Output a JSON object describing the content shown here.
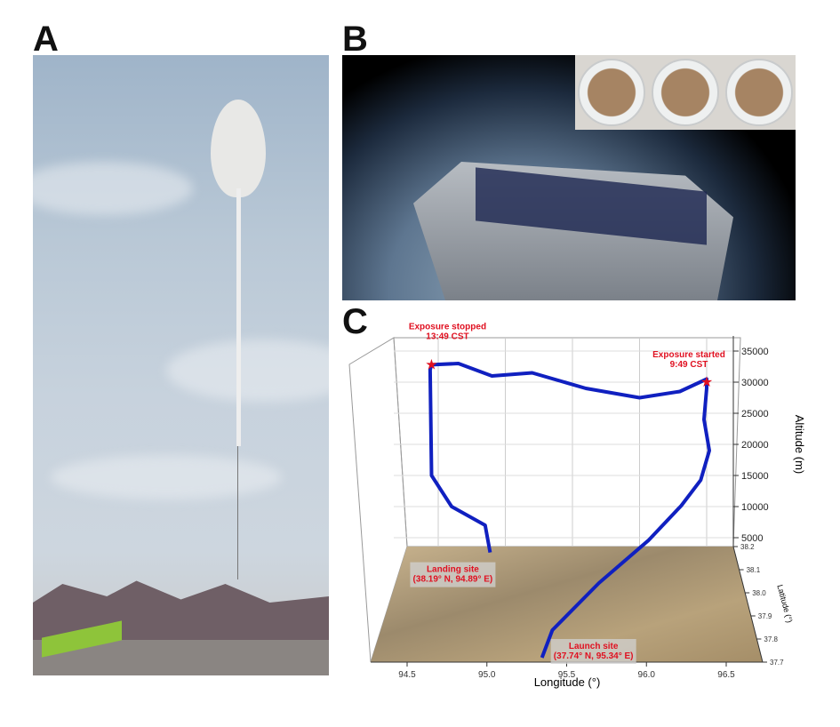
{
  "panels": {
    "a": "A",
    "b": "B",
    "c": "C"
  },
  "chart_data": {
    "type": "line-3d",
    "xlabel": "Longitude (°)",
    "ylabel": "Latitude (°)",
    "zlabel": "Altitude (m)",
    "x_ticks": [
      "94.5",
      "95.0",
      "95.5",
      "96.0",
      "96.5"
    ],
    "y_ticks": [
      "37.7",
      "37.8",
      "37.9",
      "38.0",
      "38.1",
      "38.2"
    ],
    "z_ticks": [
      "5000",
      "10000",
      "15000",
      "20000",
      "25000",
      "30000",
      "35000"
    ],
    "xlim": [
      94.3,
      96.7
    ],
    "ylim": [
      37.7,
      38.2
    ],
    "zlim": [
      0,
      36000
    ],
    "line_color": "#1020c0",
    "marker_color": "#e01020",
    "trajectory": [
      [
        37.74,
        95.34,
        2800
      ],
      [
        37.8,
        95.4,
        5000
      ],
      [
        37.95,
        95.7,
        7000
      ],
      [
        38.08,
        96.05,
        9000
      ],
      [
        38.15,
        96.3,
        12000
      ],
      [
        38.18,
        96.45,
        15000
      ],
      [
        38.2,
        96.52,
        19000
      ],
      [
        38.2,
        96.48,
        24000
      ],
      [
        38.2,
        96.5,
        29000
      ],
      [
        38.2,
        96.5,
        30500
      ],
      [
        38.2,
        96.3,
        28500
      ],
      [
        38.2,
        96.0,
        27500
      ],
      [
        38.2,
        95.6,
        29000
      ],
      [
        38.2,
        95.2,
        31500
      ],
      [
        38.2,
        94.9,
        31000
      ],
      [
        38.2,
        94.65,
        33000
      ],
      [
        38.2,
        94.45,
        32800
      ],
      [
        38.2,
        94.44,
        32000
      ],
      [
        38.2,
        94.45,
        15000
      ],
      [
        38.2,
        94.6,
        10000
      ],
      [
        38.2,
        94.85,
        7000
      ],
      [
        38.19,
        94.89,
        3000
      ]
    ],
    "annotations": [
      {
        "label": "Exposure started",
        "sub": "9:49 CST",
        "point": [
          38.2,
          96.5,
          30000
        ]
      },
      {
        "label": "Exposure stopped",
        "sub": "13:49 CST",
        "point": [
          38.2,
          94.45,
          32800
        ]
      },
      {
        "label": "Landing site",
        "sub": "(38.19° N, 94.89° E)",
        "point": [
          38.19,
          94.89,
          3000
        ]
      },
      {
        "label": "Launch site",
        "sub": "(37.74° N, 95.34° E)",
        "point": [
          37.74,
          95.34,
          2800
        ]
      }
    ]
  }
}
